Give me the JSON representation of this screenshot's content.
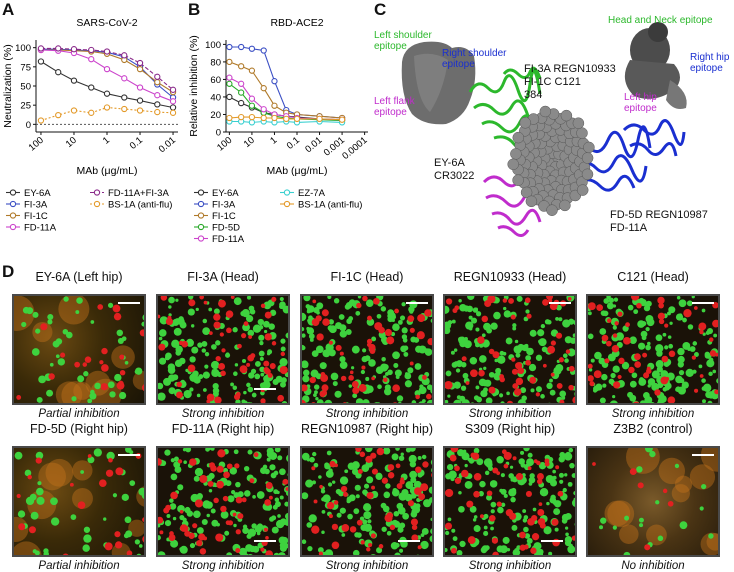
{
  "panel_labels": {
    "a": "A",
    "b": "B",
    "c": "C",
    "d": "D"
  },
  "chart_data": [
    {
      "type": "line",
      "title": "SARS-CoV-2",
      "xlabel": "MAb (μg/mL)",
      "ylabel": "Neutralization (%)",
      "xscale": "log-reversed",
      "xticks": [
        "100",
        "10",
        "1",
        "0.1",
        "0.01"
      ],
      "yticks": [
        "0",
        "25",
        "50",
        "75",
        "100"
      ],
      "ylim": [
        -10,
        110
      ],
      "x": [
        100,
        30,
        10,
        3,
        1,
        0.3,
        0.1,
        0.03,
        0.01
      ],
      "series": [
        {
          "name": "EY-6A",
          "color": "#333333",
          "dash": "",
          "values": [
            82,
            68,
            57,
            48,
            40,
            35,
            31,
            26,
            22
          ]
        },
        {
          "name": "FI-3A",
          "color": "#3b4fc4",
          "dash": "",
          "values": [
            98,
            98,
            97,
            96,
            94,
            88,
            75,
            52,
            35
          ]
        },
        {
          "name": "FI-1C",
          "color": "#b07a2a",
          "dash": "",
          "values": [
            97,
            97,
            96,
            95,
            92,
            84,
            72,
            55,
            42
          ]
        },
        {
          "name": "FD-11A",
          "color": "#cc44cc",
          "dash": "",
          "values": [
            97,
            96,
            93,
            85,
            72,
            60,
            48,
            38,
            30
          ]
        },
        {
          "name": "FD-11A+FI-3A",
          "color": "#8a2a8a",
          "dash": "4 2",
          "values": [
            99,
            99,
            98,
            97,
            95,
            90,
            80,
            62,
            45
          ]
        },
        {
          "name": "BS-1A (anti-flu)",
          "color": "#e39a2a",
          "dash": "2 2",
          "values": [
            5,
            12,
            18,
            15,
            22,
            20,
            18,
            16,
            15
          ]
        }
      ],
      "legend": "bottom"
    },
    {
      "type": "line",
      "title": "RBD-ACE2",
      "xlabel": "MAb (μg/mL)",
      "ylabel": "Relative inhibition (%)",
      "xscale": "log-reversed",
      "xticks": [
        "100",
        "10",
        "1",
        "0.1",
        "0.01",
        "0.001",
        "0.0001"
      ],
      "yticks": [
        "0",
        "20",
        "40",
        "60",
        "80",
        "100"
      ],
      "ylim": [
        0,
        105
      ],
      "x": [
        100,
        30,
        10,
        3,
        1,
        0.3,
        0.1,
        0.01,
        0.001
      ],
      "series": [
        {
          "name": "EY-6A",
          "color": "#333333",
          "dash": "",
          "values": [
            40,
            33,
            28,
            22,
            20,
            18,
            17,
            15,
            14
          ]
        },
        {
          "name": "FI-3A",
          "color": "#3b4fc4",
          "dash": "",
          "values": [
            97,
            97,
            95,
            93,
            58,
            25,
            20,
            18,
            16
          ]
        },
        {
          "name": "FI-1C",
          "color": "#b07a2a",
          "dash": "",
          "values": [
            80,
            75,
            70,
            50,
            30,
            22,
            20,
            18,
            16
          ]
        },
        {
          "name": "FD-5D",
          "color": "#2aa82a",
          "dash": "",
          "values": [
            55,
            45,
            30,
            22,
            18,
            16,
            15,
            14,
            13
          ]
        },
        {
          "name": "FD-11A",
          "color": "#cc44cc",
          "dash": "",
          "values": [
            62,
            55,
            38,
            26,
            20,
            18,
            16,
            15,
            14
          ]
        },
        {
          "name": "EZ-7A",
          "color": "#3ad0d0",
          "dash": "",
          "values": [
            12,
            12,
            11,
            12,
            11,
            12,
            11,
            12,
            11
          ]
        },
        {
          "name": "BS-1A (anti-flu)",
          "color": "#e39a2a",
          "dash": "",
          "values": [
            16,
            17,
            17,
            16,
            16,
            15,
            15,
            15,
            14
          ]
        }
      ],
      "legend": "bottom"
    }
  ],
  "structure": {
    "labels": {
      "left_shoulder": "Left shoulder\nepitope",
      "right_shoulder": "Right shoulder\nepitope",
      "left_flank": "Left flank\nepitope",
      "head_neck": "Head and Neck epitope",
      "right_hip": "Right hip\nepitope",
      "left_hip": "Left hip\nepitope",
      "group1": "FI-3A   REGN10933\nFI-1C   C121\n384",
      "group2": "EY-6A\nCR3022",
      "group3": "FD-5D   REGN10987\nFD-11A"
    },
    "colors": {
      "green": "#2cb82c",
      "blue": "#1a2fd0",
      "magenta": "#c02ccc",
      "grey": "#8a8a8a"
    }
  },
  "micrographs": [
    {
      "title": "EY-6A (Left hip)",
      "caption": "Partial inhibition",
      "kind": "partial"
    },
    {
      "title": "FI-3A (Head)",
      "caption": "Strong inhibition",
      "kind": "strong"
    },
    {
      "title": "FI-1C (Head)",
      "caption": "Strong inhibition",
      "kind": "strong"
    },
    {
      "title": "REGN10933 (Head)",
      "caption": "Strong inhibition",
      "kind": "strong"
    },
    {
      "title": "C121 (Head)",
      "caption": "Strong inhibition",
      "kind": "strong"
    },
    {
      "title": "FD-5D (Right hip)",
      "caption": "Partial inhibition",
      "kind": "partial"
    },
    {
      "title": "FD-11A (Right hip)",
      "caption": "Strong inhibition",
      "kind": "strong"
    },
    {
      "title": "REGN10987 (Right hip)",
      "caption": "Strong inhibition",
      "kind": "strong"
    },
    {
      "title": "S309 (Right hip)",
      "caption": "Strong inhibition",
      "kind": "strong"
    },
    {
      "title": "Z3B2 (control)",
      "caption": "No inhibition",
      "kind": "none"
    }
  ]
}
